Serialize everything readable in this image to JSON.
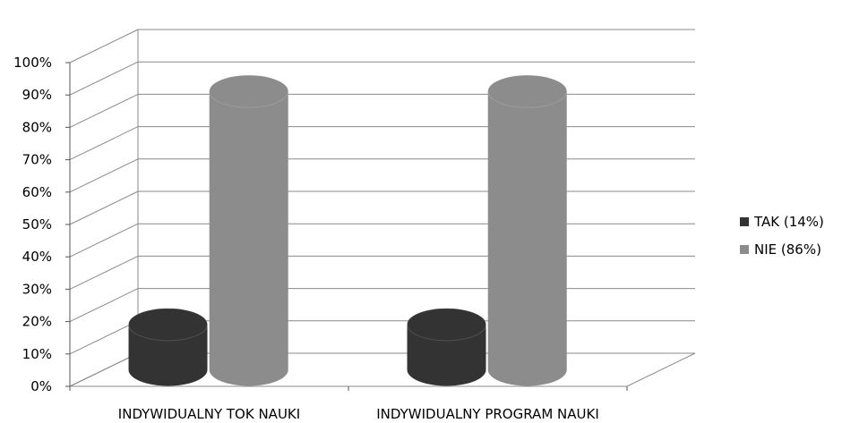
{
  "chart_data": {
    "type": "bar",
    "style": "3d-cylinder",
    "categories": [
      "INDYWIDUALNY TOK NAUKI",
      "INDYWIDUALNY PROGRAM NAUKI"
    ],
    "series": [
      {
        "name": "TAK (14%)",
        "values": [
          14,
          14
        ],
        "color": "#333333"
      },
      {
        "name": "NIE (86%)",
        "values": [
          86,
          86
        ],
        "color": "#8c8c8c"
      }
    ],
    "y_ticks": [
      "0%",
      "10%",
      "20%",
      "30%",
      "40%",
      "50%",
      "60%",
      "70%",
      "80%",
      "90%",
      "100%"
    ],
    "ylim": [
      0,
      100
    ],
    "grid": true,
    "legend_position": "right"
  }
}
